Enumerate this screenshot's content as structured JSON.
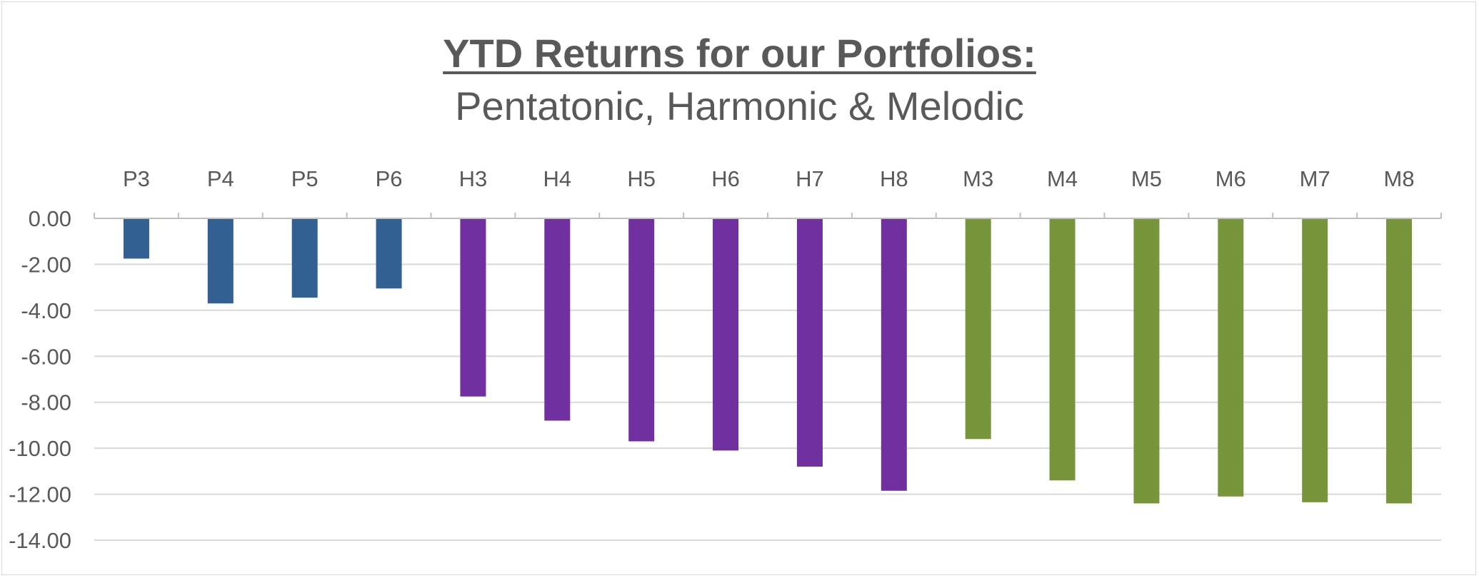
{
  "chart_data": {
    "type": "bar",
    "title": "YTD Returns for our Portfolios:",
    "subtitle": "Pentatonic, Harmonic & Melodic",
    "xlabel": "",
    "ylabel": "",
    "categories": [
      "P3",
      "P4",
      "P5",
      "P6",
      "H3",
      "H4",
      "H5",
      "H6",
      "H7",
      "H8",
      "M3",
      "M4",
      "M5",
      "M6",
      "M7",
      "M8"
    ],
    "values": [
      -1.75,
      -3.7,
      -3.45,
      -3.05,
      -7.75,
      -8.8,
      -9.7,
      -10.1,
      -10.8,
      -11.85,
      -9.6,
      -11.4,
      -12.4,
      -12.1,
      -12.35,
      -12.4
    ],
    "bar_colors": [
      "#336092",
      "#336092",
      "#336092",
      "#336092",
      "#7030a0",
      "#7030a0",
      "#7030a0",
      "#7030a0",
      "#7030a0",
      "#7030a0",
      "#77963c",
      "#77963c",
      "#77963c",
      "#77963c",
      "#77963c",
      "#77963c"
    ],
    "ylim": [
      -14,
      0
    ],
    "yticks": [
      "0.00",
      "-2.00",
      "-4.00",
      "-6.00",
      "-8.00",
      "-10.00",
      "-12.00",
      "-14.00"
    ],
    "ytick_values": [
      0,
      -2,
      -4,
      -6,
      -8,
      -10,
      -12,
      -14
    ],
    "category_axis_position": "top",
    "grid": true,
    "legend": "none",
    "colors": {
      "text": "#595959",
      "grid": "#d9d9d9",
      "axis": "#bfbfbf"
    }
  }
}
